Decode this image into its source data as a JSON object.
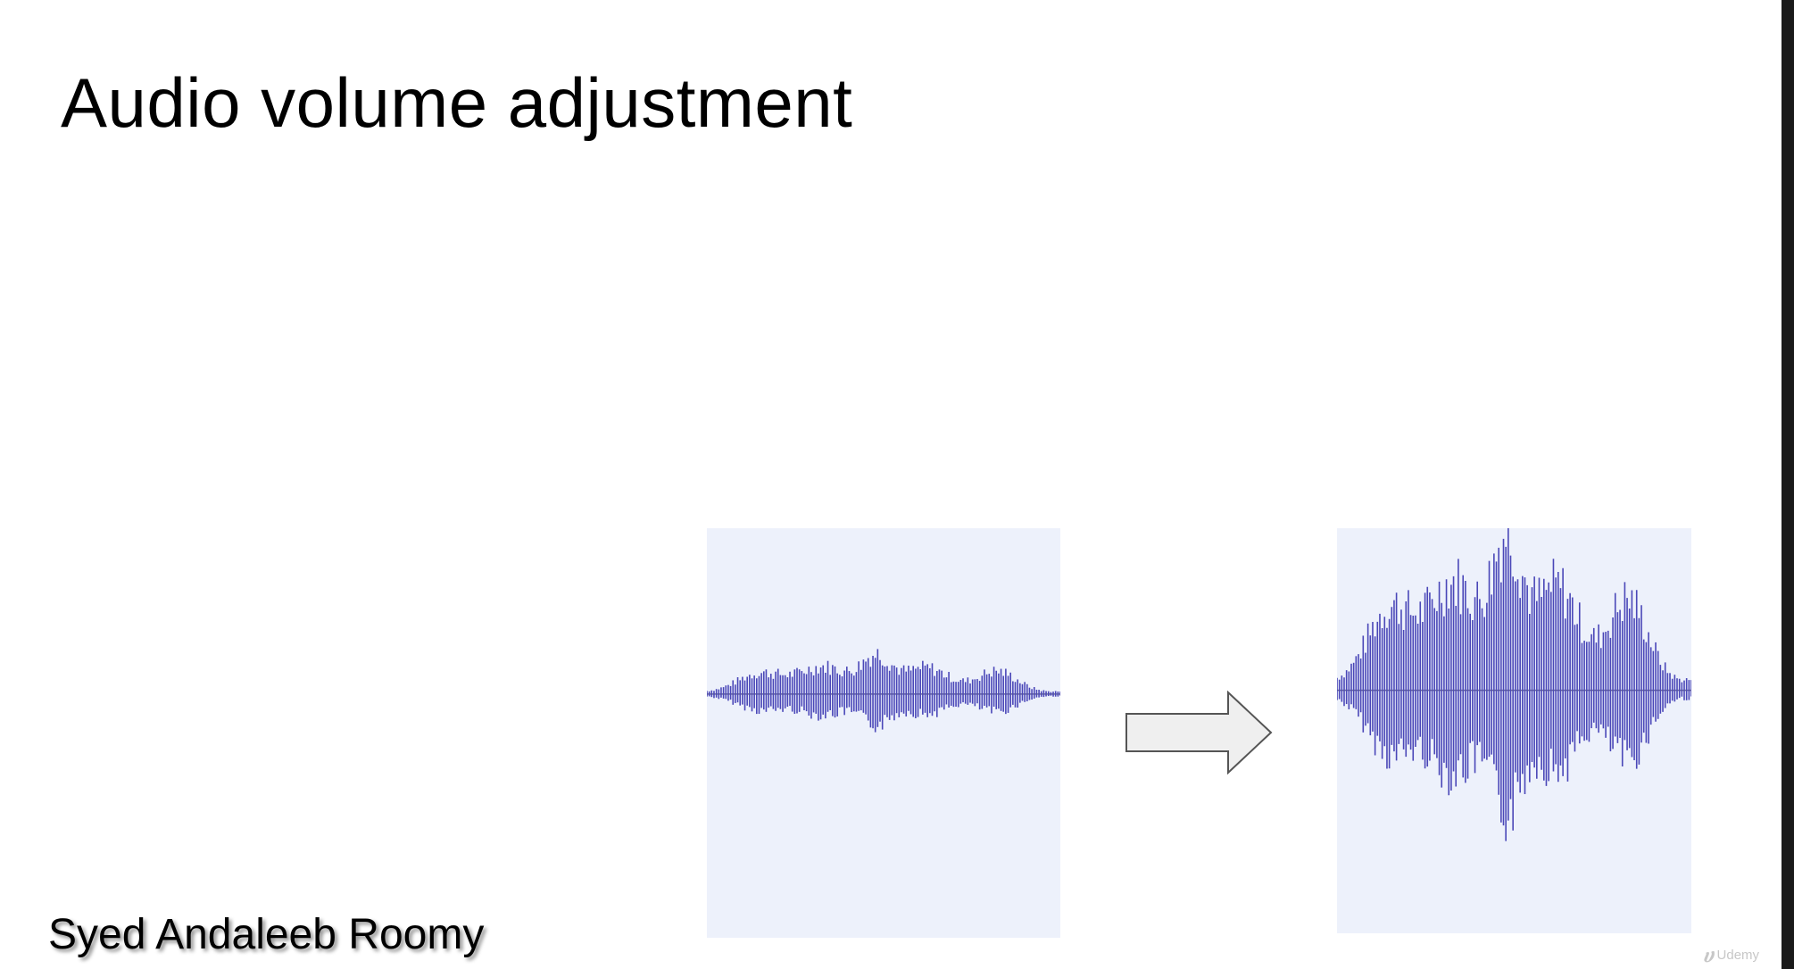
{
  "slide": {
    "title": "Audio volume adjustment",
    "author": "Syed Andaleeb Roomy"
  },
  "waveforms": {
    "color": "#4a47b8",
    "background": "#edf1fb",
    "before": {
      "label": "original-waveform",
      "amplitude": 0.25
    },
    "after": {
      "label": "amplified-waveform",
      "amplitude": 1.0
    }
  },
  "arrow": {
    "icon": "right-arrow-icon",
    "fill": "#efefef",
    "stroke": "#555555"
  },
  "watermark": {
    "icon": "udemy-logo-icon",
    "text": "Udemy"
  }
}
